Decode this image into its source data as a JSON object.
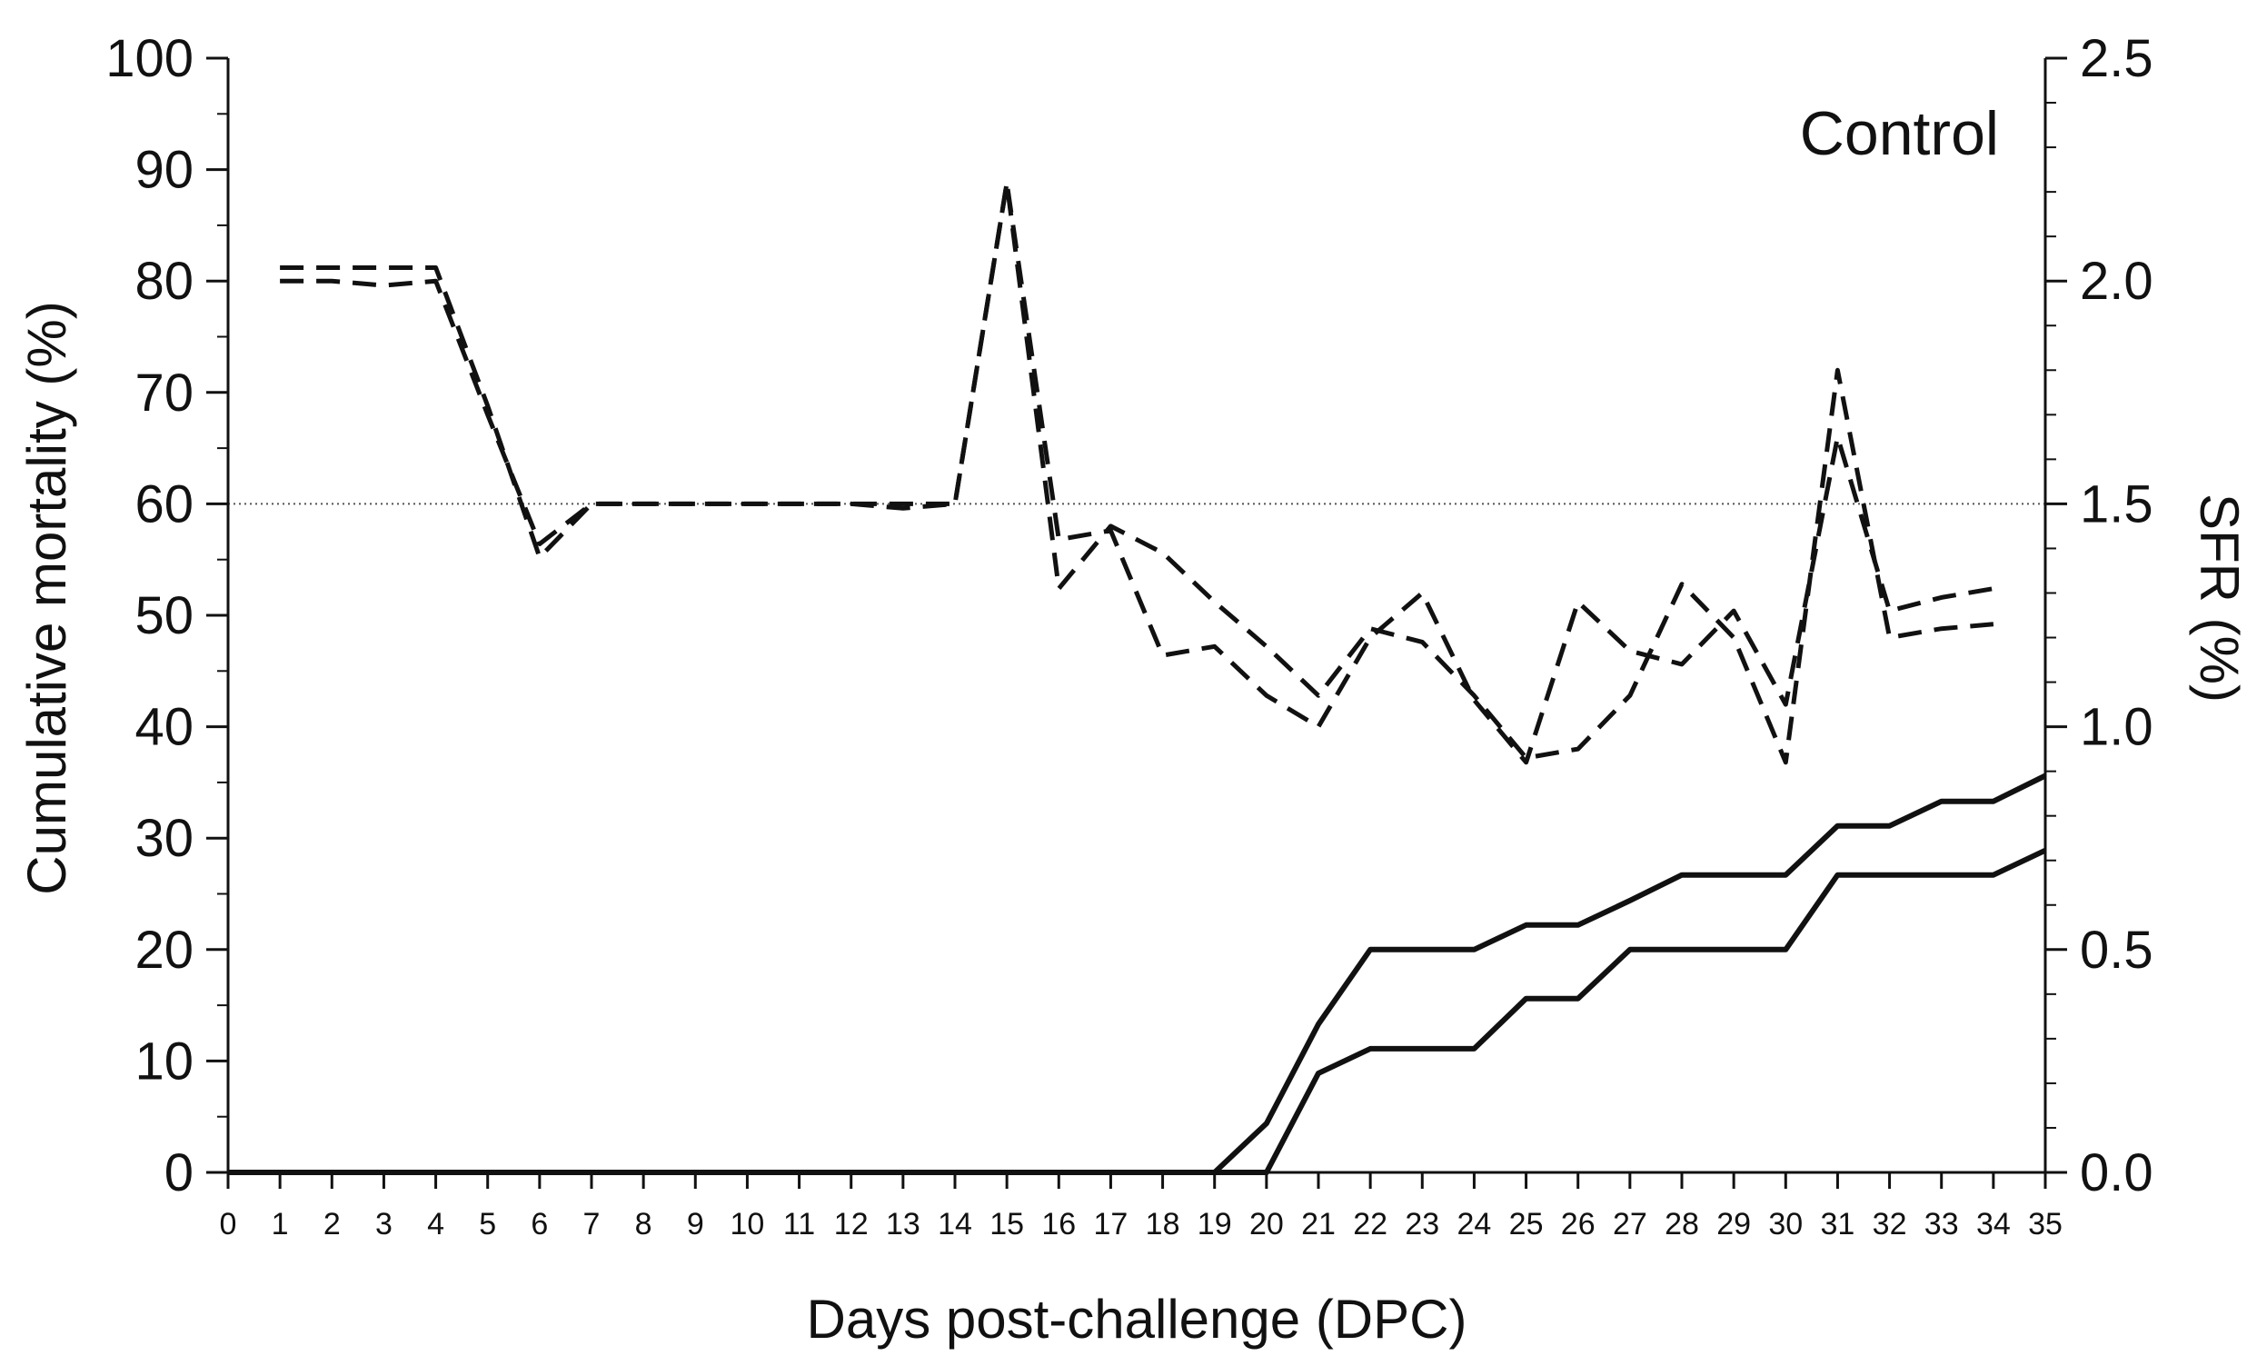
{
  "chart_data": {
    "type": "line",
    "panel_label": "Control",
    "xlabel": "Days post-challenge (DPC)",
    "ylabel_left": "Cumulative mortality (%)",
    "ylabel_right": "SFR (%)",
    "xlim": [
      0,
      35
    ],
    "ylim_left": [
      0,
      100
    ],
    "ylim_right": [
      0,
      2.5
    ],
    "x_ticks": [
      "0",
      "1",
      "2",
      "3",
      "4",
      "5",
      "6",
      "7",
      "8",
      "9",
      "10",
      "11",
      "12",
      "13",
      "14",
      "15",
      "16",
      "17",
      "18",
      "19",
      "20",
      "21",
      "22",
      "23",
      "24",
      "25",
      "26",
      "27",
      "28",
      "29",
      "30",
      "31",
      "32",
      "33",
      "34",
      "35"
    ],
    "y_left_ticks": [
      "0",
      "10",
      "20",
      "30",
      "40",
      "50",
      "60",
      "70",
      "80",
      "90",
      "100"
    ],
    "y_right_ticks": [
      "0.0",
      "0.5",
      "1.0",
      "1.5",
      "2.0",
      "2.5"
    ],
    "reference_line": {
      "axis": "left",
      "value": 60,
      "style": "dotted"
    },
    "grid": false,
    "legend": "none",
    "colors": {
      "line": "#111111",
      "axis": "#111111",
      "reference": "#555555"
    },
    "series": [
      {
        "axis": "left",
        "style": "solid",
        "x": [
          0,
          19,
          20,
          21,
          22,
          23,
          24,
          25,
          26,
          27,
          28,
          29,
          30,
          31,
          32,
          33,
          34,
          35
        ],
        "values": [
          0,
          0,
          4.4,
          13.3,
          20,
          20,
          20,
          22.2,
          22.2,
          24.4,
          26.7,
          26.7,
          26.7,
          31.1,
          31.1,
          33.3,
          33.3,
          35.6
        ]
      },
      {
        "axis": "left",
        "style": "solid",
        "x": [
          0,
          20,
          21,
          22,
          23,
          24,
          25,
          26,
          27,
          28,
          29,
          30,
          31,
          32,
          33,
          34,
          35
        ],
        "values": [
          0,
          0,
          8.9,
          11.1,
          11.1,
          11.1,
          15.6,
          15.6,
          20,
          20,
          20,
          20,
          26.7,
          26.7,
          26.7,
          26.7,
          28.9
        ]
      },
      {
        "axis": "right",
        "style": "dashed",
        "x": [
          1,
          2,
          3,
          4,
          5,
          6,
          7,
          8,
          9,
          10,
          11,
          12,
          13,
          14,
          15,
          16,
          17,
          18,
          19,
          20,
          21,
          22,
          23,
          24,
          25,
          26,
          27,
          28,
          29,
          30,
          31,
          32,
          33,
          34
        ],
        "values": [
          2.03,
          2.03,
          2.03,
          2.03,
          1.72,
          1.38,
          1.5,
          1.5,
          1.5,
          1.5,
          1.5,
          1.5,
          1.5,
          1.5,
          2.22,
          1.31,
          1.45,
          1.39,
          1.28,
          1.18,
          1.07,
          1.22,
          1.19,
          1.07,
          0.93,
          0.95,
          1.07,
          1.32,
          1.2,
          0.92,
          1.8,
          1.2,
          1.22,
          1.23
        ]
      },
      {
        "axis": "right",
        "style": "dashed",
        "x": [
          1,
          2,
          3,
          4,
          5,
          6,
          7,
          8,
          9,
          10,
          11,
          12,
          13,
          14,
          15,
          16,
          17,
          18,
          19,
          20,
          21,
          22,
          23,
          24,
          25,
          26,
          27,
          28,
          29,
          30,
          31,
          32,
          33,
          34
        ],
        "values": [
          2.0,
          2.0,
          1.99,
          2.0,
          1.7,
          1.41,
          1.5,
          1.5,
          1.5,
          1.5,
          1.5,
          1.5,
          1.49,
          1.5,
          2.22,
          1.42,
          1.44,
          1.16,
          1.18,
          1.07,
          1.0,
          1.2,
          1.3,
          1.06,
          0.92,
          1.28,
          1.17,
          1.14,
          1.26,
          1.05,
          1.65,
          1.26,
          1.29,
          1.31
        ]
      }
    ]
  }
}
